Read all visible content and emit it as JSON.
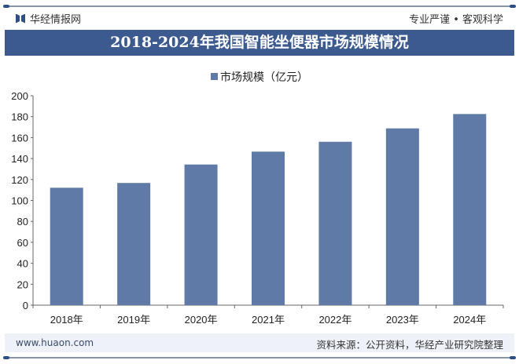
{
  "header": {
    "brand": "华经情报网",
    "slogan": "专业严谨 • 客观科学",
    "logo_icon": "huajing-logo-icon"
  },
  "title": "2018-2024年我国智能坐便器市场规模情况",
  "footer": {
    "url": "www.huaon.com",
    "source": "资料来源：公开资料，华经产业研究院整理"
  },
  "chart_data": {
    "type": "bar",
    "title": "2018-2024年我国智能坐便器市场规模情况",
    "categories": [
      "2018年",
      "2019年",
      "2020年",
      "2021年",
      "2022年",
      "2023年",
      "2024年"
    ],
    "series": [
      {
        "name": "市场规模（亿元）",
        "values": [
          112.1,
          116.7,
          134.3,
          146.6,
          156.0,
          168.8,
          182.5
        ],
        "color": "#5f7aa6"
      }
    ],
    "ylim": [
      0,
      200
    ],
    "yticks": [
      "0",
      "20",
      "40",
      "60",
      "80",
      "100",
      "120",
      "140",
      "160",
      "180",
      "200"
    ],
    "grid": false,
    "legend": "top-center"
  }
}
